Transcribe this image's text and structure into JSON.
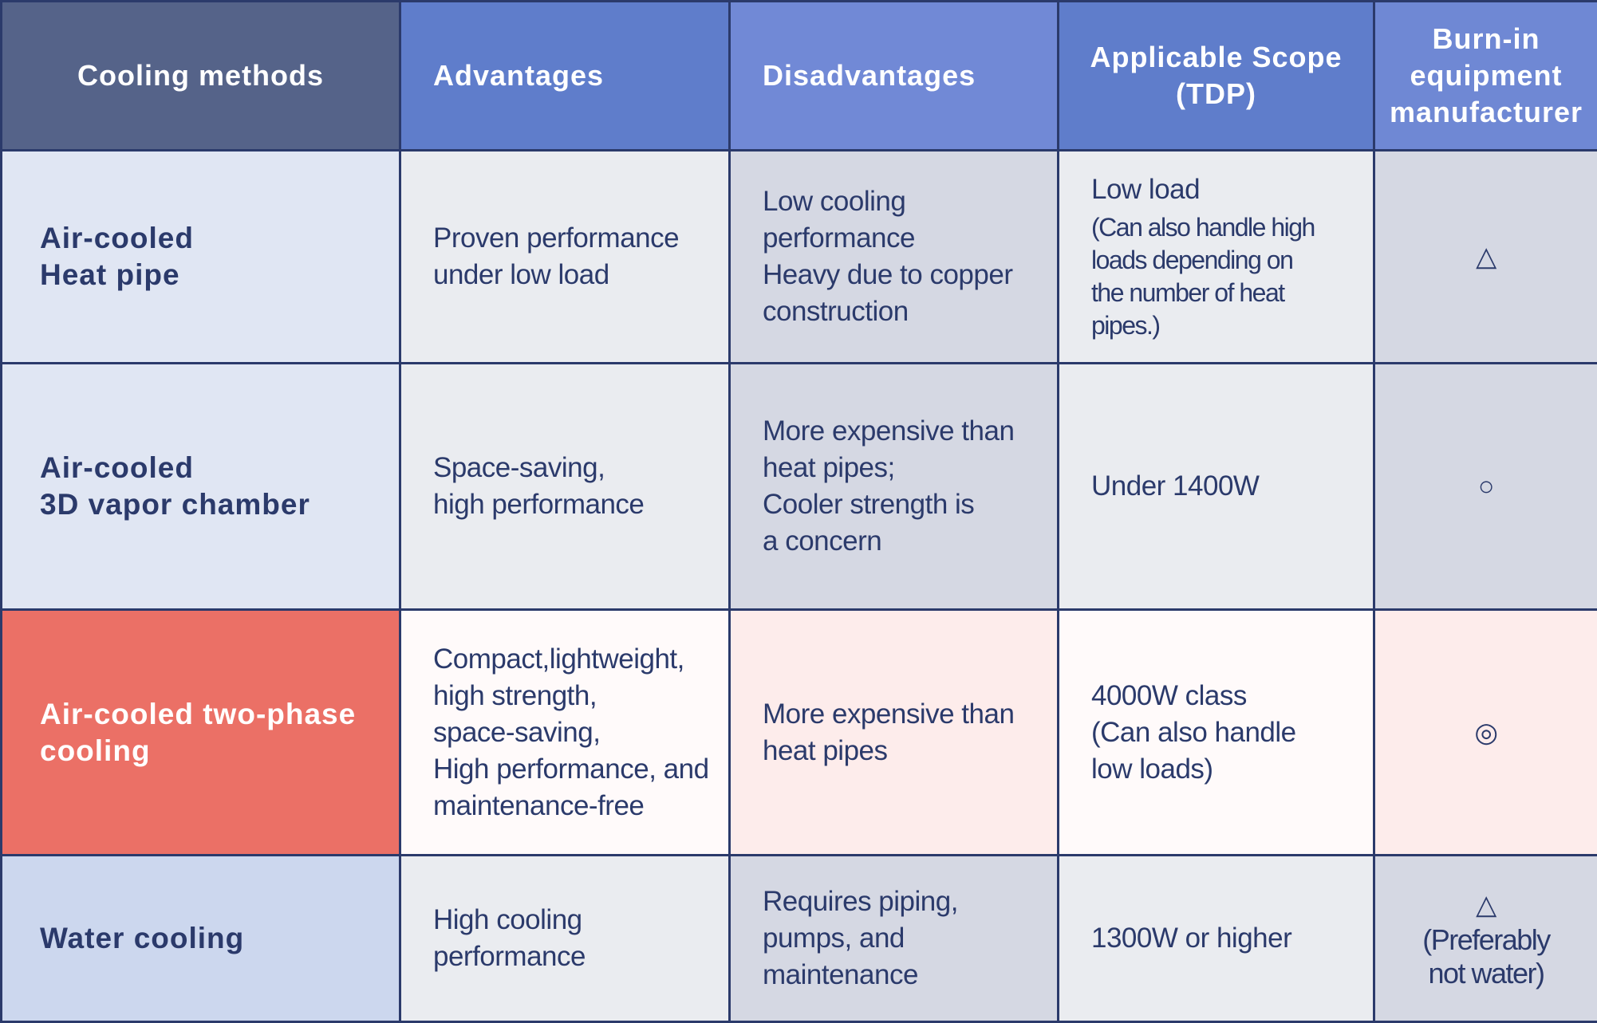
{
  "headers": [
    "Cooling methods",
    "Advantages",
    "Disadvantages",
    "Applicable Scope\n(TDP)",
    "Burn-in\nequipment\nmanufacturer"
  ],
  "rows": [
    {
      "method": "Air-cooled\nHeat pipe",
      "advantages": "Proven performance\nunder low load",
      "disadvantages": "Low cooling\nperformance\nHeavy due to copper\nconstruction",
      "scope": "Low load",
      "scope_note": "(Can also handle high\nloads depending on\nthe number of heat pipes.)",
      "rating": "△",
      "rating_note": ""
    },
    {
      "method": "Air-cooled\n3D vapor chamber",
      "advantages": "Space-saving,\nhigh performance",
      "disadvantages": "More expensive than\nheat pipes;\nCooler strength is\na concern",
      "scope": "Under 1400W",
      "scope_note": "",
      "rating": "○",
      "rating_note": ""
    },
    {
      "method": "Air-cooled two-phase\ncooling",
      "advantages": "Compact,lightweight,\nhigh strength,\nspace-saving,\nHigh performance, and\nmaintenance-free",
      "disadvantages": "More expensive than\nheat pipes",
      "scope": "4000W class\n(Can also handle\nlow loads)",
      "scope_note": "",
      "rating": "◎",
      "rating_note": ""
    },
    {
      "method": "Water cooling",
      "advantages": "High cooling\nperformance",
      "disadvantages": "Requires piping,\npumps, and\nmaintenance",
      "scope": "1300W or higher",
      "scope_note": "",
      "rating": "△",
      "rating_note": "(Preferably\nnot water)"
    }
  ],
  "colors": {
    "border": "#2b3a6b",
    "highlight": "#eb7066",
    "header_dark": "#556389",
    "header_blue": "#5f7dcb"
  }
}
